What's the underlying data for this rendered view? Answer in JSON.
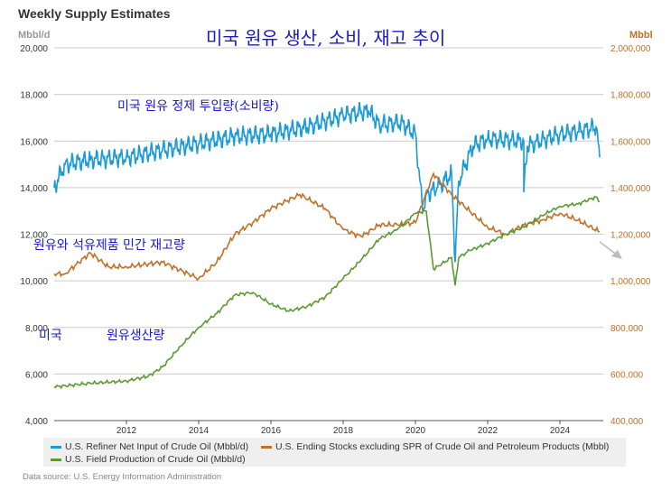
{
  "header": {
    "title": "Weekly Supply Estimates",
    "annotation_title": "미국 원유 생산, 소비, 재고 추이"
  },
  "annotations": {
    "refiner": "미국 원유 정제 투입량(소비량)",
    "stocks": "원유와 석유제품 민간 재고량",
    "production_a": "미국",
    "production_b": "원유생산량"
  },
  "source": "Data source: U.S. Energy Information Administration",
  "colors": {
    "refiner": "#1a9ad6",
    "stocks": "#c0712a",
    "production": "#5b9a32",
    "right_axis": "#c0712a",
    "annotation": "#1a1acc"
  },
  "chart_data": {
    "type": "line",
    "title": "Weekly Supply Estimates",
    "ylabel": "Mbbl/d",
    "y2label": "Mbbl",
    "ylim": [
      4000,
      20000
    ],
    "y2lim": [
      400000,
      2000000
    ],
    "xlim": [
      2010.0,
      2025.2
    ],
    "yticks": [
      "4,000",
      "6,000",
      "8,000",
      "10,000",
      "12,000",
      "14,000",
      "16,000",
      "18,000",
      "20,000"
    ],
    "y2ticks": [
      "400,000",
      "600,000",
      "800,000",
      "1,000,000",
      "1,200,000",
      "1,400,000",
      "1,600,000",
      "1,800,000",
      "2,000,000"
    ],
    "xticks": [
      "2012",
      "2014",
      "2016",
      "2018",
      "2020",
      "2022",
      "2024"
    ],
    "grid": true,
    "legend_position": "bottom",
    "series": [
      {
        "name": "U.S. Refiner Net Input of Crude Oil (Mbbl/d)",
        "axis": "left",
        "x": [
          2010.0,
          2010.3,
          2011,
          2012,
          2013,
          2014,
          2015,
          2016,
          2017,
          2018,
          2018.7,
          2019,
          2019.6,
          2020.0,
          2020.2,
          2020.3,
          2020.6,
          2021.0,
          2021.1,
          2021.2,
          2021.6,
          2022,
          2023,
          2023.0,
          2023.1,
          2024,
          2024.5,
          2025.0,
          2025.1
        ],
        "y": [
          14000,
          15000,
          15200,
          15300,
          15600,
          15900,
          16200,
          16300,
          16600,
          17100,
          17300,
          16700,
          16800,
          16300,
          13000,
          13700,
          14000,
          14600,
          10800,
          14300,
          15800,
          16100,
          16000,
          13800,
          15800,
          16300,
          16400,
          16600,
          15300
        ]
      },
      {
        "name": "U.S. Ending Stocks excluding SPR of Crude Oil and Petroleum Products (Mbbl)",
        "axis": "right",
        "x": [
          2010,
          2010.3,
          2011,
          2011.5,
          2012,
          2013,
          2014,
          2014.5,
          2015,
          2015.5,
          2016,
          2016.8,
          2017.5,
          2018,
          2018.5,
          2019,
          2019.5,
          2020,
          2020.5,
          2021,
          2021.5,
          2022,
          2022.5,
          2023,
          2023.5,
          2024,
          2024.5,
          2025.1
        ],
        "y": [
          1030000,
          1030000,
          1120000,
          1060000,
          1060000,
          1080000,
          1010000,
          1080000,
          1200000,
          1250000,
          1310000,
          1370000,
          1310000,
          1220000,
          1190000,
          1240000,
          1240000,
          1250000,
          1460000,
          1370000,
          1300000,
          1230000,
          1200000,
          1240000,
          1260000,
          1290000,
          1260000,
          1210000
        ]
      },
      {
        "name": "U.S. Field Production of Crude Oil (Mbbl/d)",
        "axis": "left",
        "x": [
          2010,
          2011,
          2012,
          2012.6,
          2013,
          2013.5,
          2014,
          2014.5,
          2015,
          2015.5,
          2016,
          2016.5,
          2017,
          2017.5,
          2018,
          2018.5,
          2019,
          2019.5,
          2020,
          2020.3,
          2020.5,
          2021,
          2021.1,
          2021.2,
          2021.5,
          2022,
          2022.5,
          2023,
          2023.5,
          2024,
          2024.5,
          2025.0,
          2025.1
        ],
        "y": [
          5450,
          5600,
          5700,
          5900,
          6300,
          7200,
          8000,
          8600,
          9400,
          9500,
          9000,
          8700,
          8900,
          9300,
          10100,
          10900,
          11800,
          12200,
          12900,
          13000,
          10500,
          11000,
          9800,
          11000,
          11300,
          11600,
          12000,
          12300,
          12800,
          13200,
          13300,
          13600,
          13400
        ]
      }
    ]
  }
}
